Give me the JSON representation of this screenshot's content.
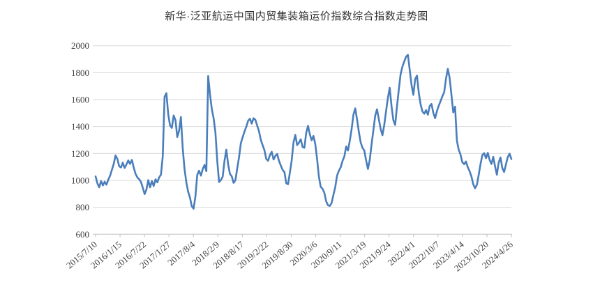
{
  "page": {
    "background": "#ffffff"
  },
  "chart_data": {
    "type": "line",
    "title": "新华·泛亚航运中国内贸集装箱运价指数综合指数走势图",
    "legend": "none",
    "grid": "horizontal-only",
    "ylim": [
      600,
      2000
    ],
    "y_ticks": [
      600,
      800,
      1000,
      1200,
      1400,
      1600,
      1800,
      2000
    ],
    "x_tick_labels": [
      "2015/7/10",
      "2016/1/15",
      "2016/7/22",
      "2017/1/27",
      "2017/8/4",
      "2018/2/9",
      "2018/8/17",
      "2019/2/22",
      "2019/8/30",
      "2020/3/6",
      "2020/9/11",
      "2021/3/19",
      "2021/9/24",
      "2022/4/1",
      "2022/10/7",
      "2023/4/14",
      "2023/10/20",
      "2024/4/26"
    ],
    "x_tick_week_interval": 27,
    "x_total_weeks": 459,
    "colors": {
      "line": "#4a7ebb",
      "grid": "#d9d9d9",
      "axis": "#bfbfbf",
      "tick_text": "#404040",
      "title_text": "#333333"
    },
    "series": [
      {
        "name": "综合指数",
        "x_start_week": 0,
        "x_step_weeks": 2,
        "values": [
          1030,
          978,
          948,
          995,
          962,
          990,
          968,
          1005,
          1035,
          1078,
          1122,
          1185,
          1160,
          1105,
          1096,
          1132,
          1092,
          1118,
          1148,
          1122,
          1152,
          1095,
          1048,
          1022,
          1008,
          988,
          945,
          898,
          932,
          1002,
          948,
          995,
          958,
          1008,
          985,
          1022,
          1042,
          1180,
          1620,
          1648,
          1492,
          1408,
          1390,
          1482,
          1448,
          1322,
          1368,
          1470,
          1240,
          1085,
          985,
          915,
          872,
          808,
          790,
          880,
          1040,
          1072,
          1035,
          1085,
          1115,
          1068,
          1775,
          1640,
          1530,
          1462,
          1355,
          1145,
          988,
          1002,
          1028,
          1145,
          1228,
          1120,
          1048,
          1030,
          982,
          1000,
          1088,
          1170,
          1275,
          1320,
          1362,
          1398,
          1442,
          1458,
          1422,
          1462,
          1450,
          1408,
          1365,
          1302,
          1262,
          1225,
          1160,
          1146,
          1188,
          1212,
          1155,
          1182,
          1196,
          1145,
          1110,
          1078,
          1062,
          978,
          972,
          1058,
          1148,
          1282,
          1338,
          1262,
          1280,
          1305,
          1248,
          1242,
          1352,
          1405,
          1342,
          1298,
          1330,
          1270,
          1160,
          1028,
          952,
          938,
          908,
          845,
          815,
          810,
          832,
          892,
          948,
          1035,
          1072,
          1098,
          1145,
          1178,
          1252,
          1222,
          1295,
          1380,
          1488,
          1535,
          1452,
          1360,
          1282,
          1242,
          1222,
          1148,
          1085,
          1152,
          1268,
          1372,
          1480,
          1528,
          1455,
          1382,
          1335,
          1412,
          1515,
          1612,
          1688,
          1552,
          1448,
          1412,
          1548,
          1672,
          1788,
          1845,
          1882,
          1918,
          1933,
          1820,
          1708,
          1635,
          1752,
          1778,
          1650,
          1565,
          1512,
          1495,
          1522,
          1488,
          1552,
          1568,
          1502,
          1462,
          1515,
          1555,
          1588,
          1625,
          1655,
          1755,
          1828,
          1762,
          1635,
          1505,
          1548,
          1295,
          1228,
          1192,
          1135,
          1120,
          1140,
          1098,
          1068,
          1030,
          972,
          942,
          968,
          1042,
          1122,
          1188,
          1202,
          1165,
          1205,
          1152,
          1122,
          1175,
          1105,
          1042,
          1132,
          1170,
          1092,
          1062,
          1118,
          1172,
          1198,
          1158
        ]
      }
    ]
  }
}
